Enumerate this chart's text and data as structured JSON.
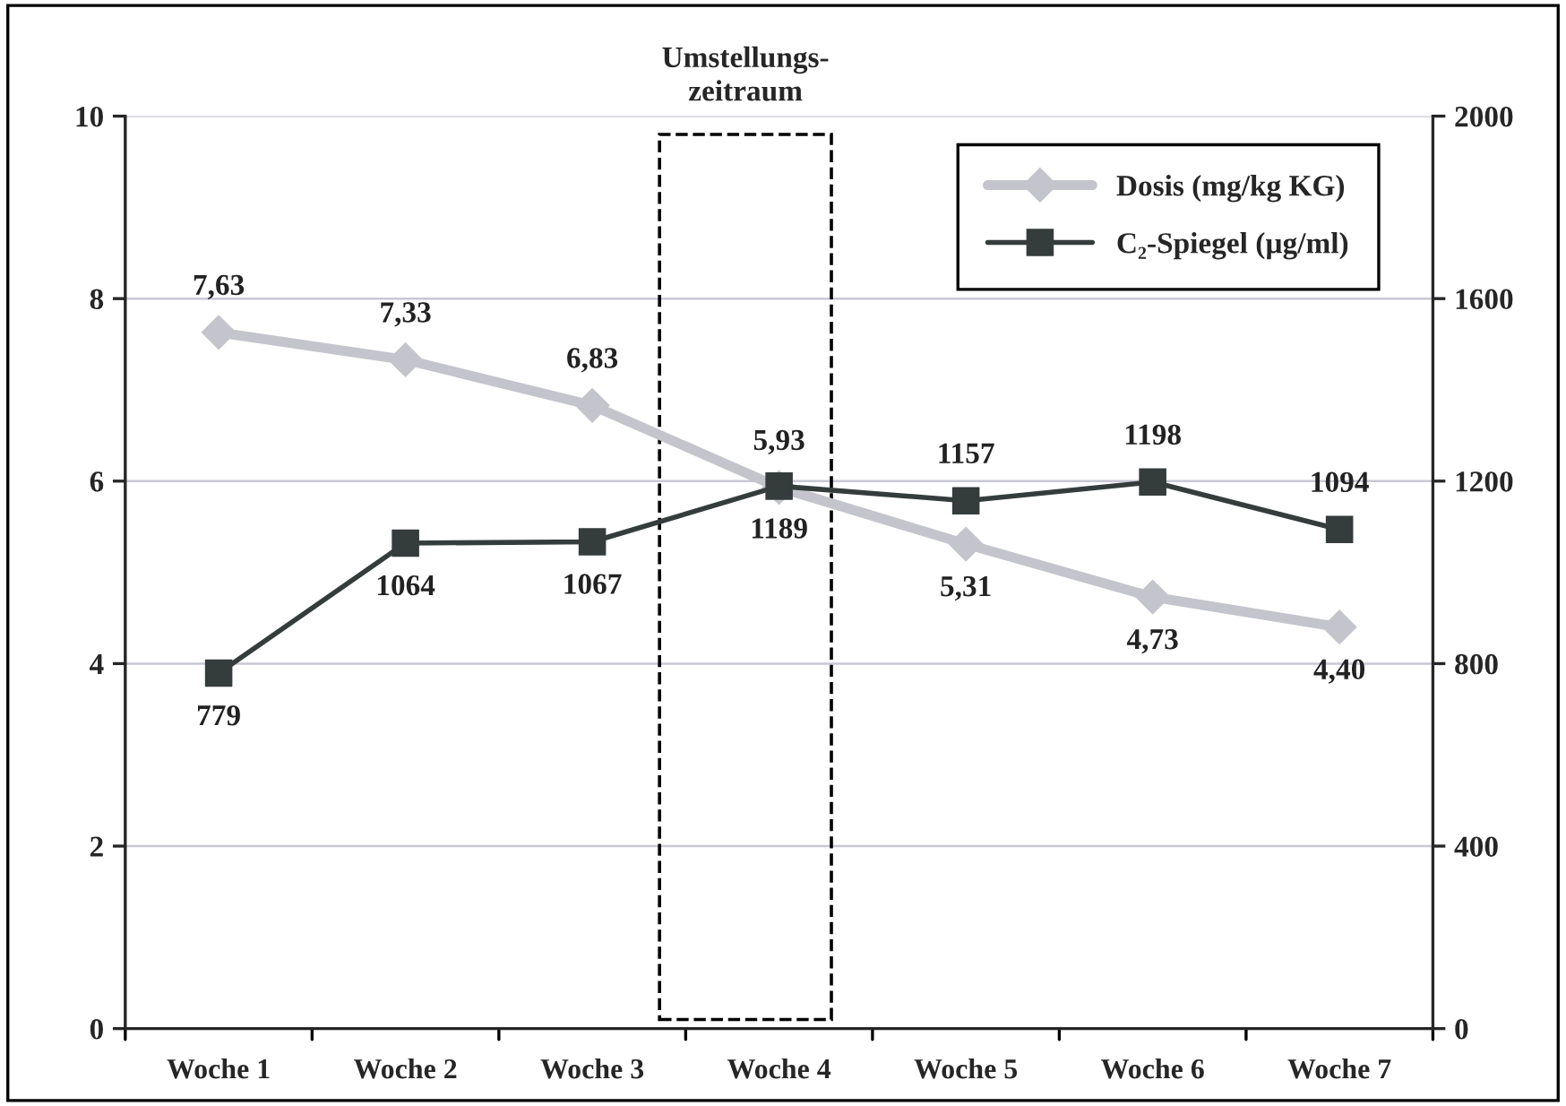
{
  "chart_data": {
    "type": "line",
    "categories": [
      "Woche 1",
      "Woche 2",
      "Woche 3",
      "Woche 4",
      "Woche 5",
      "Woche 6",
      "Woche 7"
    ],
    "series": [
      {
        "name": "Dosis (mg/kg KG)",
        "color": "#c4c5cc",
        "marker": "diamond",
        "values": [
          7.63,
          7.33,
          6.83,
          5.93,
          5.31,
          4.73,
          4.4
        ],
        "value_labels": [
          "7,63",
          "7,33",
          "6,83",
          "5,93",
          "5,31",
          "4,73",
          "4,40"
        ]
      },
      {
        "name": "C₂-Spiegel (µg/ml)",
        "color": "#353c3c",
        "marker": "square",
        "axis": "y2",
        "values": [
          779,
          1064,
          1067,
          1189,
          1157,
          1198,
          1094
        ],
        "value_labels": [
          "779",
          "1064",
          "1067",
          "1189",
          "1157",
          "1198",
          "1094"
        ]
      }
    ],
    "ylim": [
      0,
      10
    ],
    "yticks": [
      0,
      2,
      4,
      6,
      8,
      10
    ],
    "y2lim": [
      0,
      2000
    ],
    "y2ticks": [
      0,
      400,
      800,
      1200,
      1600,
      2000
    ],
    "annotations": [
      "Umstellungs-\nzeitraum"
    ],
    "grid": "y",
    "legend": "top right",
    "line_style": "solid"
  }
}
